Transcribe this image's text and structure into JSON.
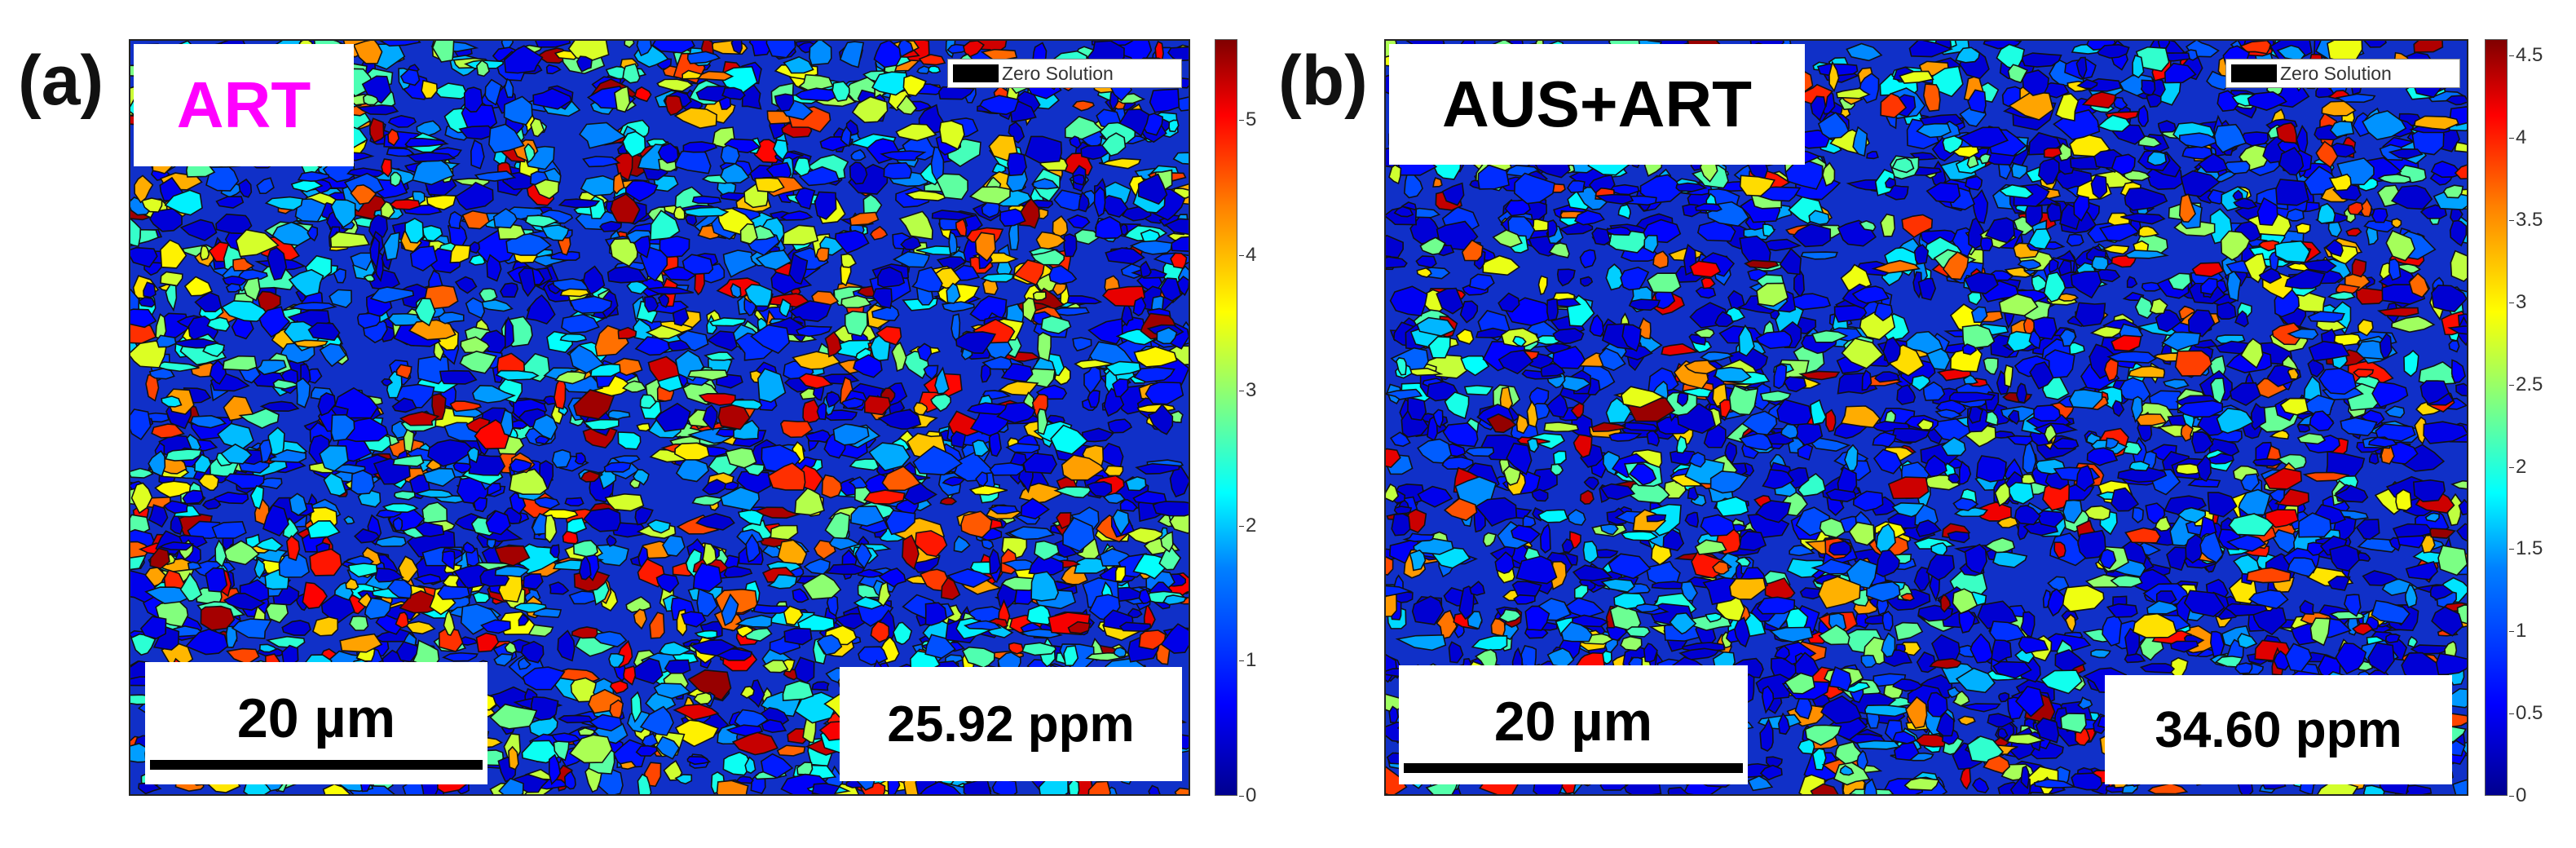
{
  "panels": [
    {
      "id": "a",
      "label": "(a)",
      "title": "ART",
      "title_color": "#ff00ff",
      "zero_solution_label": "Zero Solution",
      "scale_bar_label": "20 µm",
      "measurement": "25.92 ppm",
      "colorbar_ticks": [
        "0",
        "1",
        "2",
        "3",
        "4",
        "5"
      ],
      "colorbar_range": [
        0,
        5.6
      ]
    },
    {
      "id": "b",
      "label": "(b)",
      "title": "AUS+ART",
      "title_color": "#000000",
      "zero_solution_label": "Zero Solution",
      "scale_bar_label": "20 µm",
      "measurement": "34.60 ppm",
      "colorbar_ticks": [
        "0",
        "0.5",
        "1",
        "1.5",
        "2",
        "2.5",
        "3",
        "3.5",
        "4",
        "4.5"
      ],
      "colorbar_range": [
        0,
        4.6
      ]
    }
  ],
  "colormap": "jet"
}
